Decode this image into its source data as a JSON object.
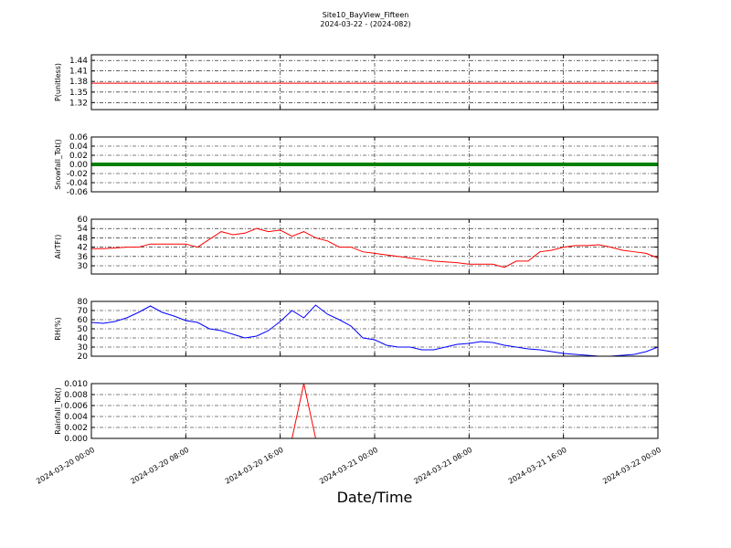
{
  "title": "Site10_BayView_Fifteen",
  "subtitle": "2024-03-22 - (2024-082)",
  "xlabel": "Date/Time",
  "chart_data": [
    {
      "type": "line",
      "ylabel": "P(unitless)",
      "color": "#ff0000",
      "linewidth": 1,
      "grid": true,
      "ylim": [
        1.3,
        1.456
      ],
      "yticks": [
        1.32,
        1.35,
        1.38,
        1.41,
        1.44
      ],
      "xlim": [
        "2024-03-20 00:00",
        "2024-03-22 00:00"
      ],
      "xticks": [
        "2024-03-20 00:00",
        "2024-03-20 08:00",
        "2024-03-20 16:00",
        "2024-03-21 00:00",
        "2024-03-21 08:00",
        "2024-03-21 16:00",
        "2024-03-22 00:00"
      ],
      "x": [
        "2024-03-20 00:00",
        "2024-03-20 01:00",
        "2024-03-20 02:00",
        "2024-03-20 03:00",
        "2024-03-20 04:00",
        "2024-03-20 05:00",
        "2024-03-20 06:00",
        "2024-03-20 07:00",
        "2024-03-20 08:00",
        "2024-03-20 09:00",
        "2024-03-20 10:00",
        "2024-03-20 11:00",
        "2024-03-20 12:00",
        "2024-03-20 13:00",
        "2024-03-20 14:00",
        "2024-03-20 15:00",
        "2024-03-20 16:00",
        "2024-03-20 17:00",
        "2024-03-20 18:00",
        "2024-03-20 19:00",
        "2024-03-20 20:00",
        "2024-03-20 21:00",
        "2024-03-20 22:00",
        "2024-03-20 23:00",
        "2024-03-21 00:00",
        "2024-03-21 01:00",
        "2024-03-21 02:00",
        "2024-03-21 03:00",
        "2024-03-21 04:00",
        "2024-03-21 05:00",
        "2024-03-21 06:00",
        "2024-03-21 07:00",
        "2024-03-21 08:00",
        "2024-03-21 09:00",
        "2024-03-21 10:00",
        "2024-03-21 11:00",
        "2024-03-21 12:00",
        "2024-03-21 13:00",
        "2024-03-21 14:00",
        "2024-03-21 15:00",
        "2024-03-21 16:00",
        "2024-03-21 17:00",
        "2024-03-21 18:00",
        "2024-03-21 19:00",
        "2024-03-21 20:00",
        "2024-03-21 21:00",
        "2024-03-21 22:00",
        "2024-03-21 23:00",
        "2024-03-22 00:00"
      ],
      "values": [
        1.375,
        1.375,
        1.375,
        1.375,
        1.375,
        1.375,
        1.375,
        1.375,
        1.375,
        1.375,
        1.375,
        1.375,
        1.375,
        1.375,
        1.375,
        1.375,
        1.375,
        1.375,
        1.375,
        1.375,
        1.375,
        1.375,
        1.375,
        1.375,
        1.375,
        1.375,
        1.375,
        1.375,
        1.375,
        1.375,
        1.375,
        1.375,
        1.375,
        1.375,
        1.375,
        1.375,
        1.375,
        1.375,
        1.375,
        1.375,
        1.375,
        1.375,
        1.375,
        1.375,
        1.375,
        1.375,
        1.375,
        1.375,
        1.375
      ]
    },
    {
      "type": "line",
      "ylabel": "Snowfall_Tot()",
      "color": "#008000",
      "linewidth": 4,
      "grid": true,
      "ylim": [
        -0.06,
        0.06
      ],
      "yticks": [
        {
          "value": -0.06,
          "label": "-0.06"
        },
        {
          "value": -0.04,
          "label": "-0.04"
        },
        {
          "value": -0.02,
          "label": "-0.02"
        },
        {
          "value": 0,
          "label": "0.00"
        },
        {
          "value": 0.02,
          "label": "0.02"
        },
        {
          "value": 0.04,
          "label": "0.04"
        },
        {
          "value": 0.06,
          "label": "0.06"
        }
      ],
      "xlim": [
        "2024-03-20 00:00",
        "2024-03-22 00:00"
      ],
      "xticks": [
        "2024-03-20 00:00",
        "2024-03-20 08:00",
        "2024-03-20 16:00",
        "2024-03-21 00:00",
        "2024-03-21 08:00",
        "2024-03-21 16:00",
        "2024-03-22 00:00"
      ],
      "x": [
        "2024-03-20 00:00",
        "2024-03-20 01:00",
        "2024-03-20 02:00",
        "2024-03-20 03:00",
        "2024-03-20 04:00",
        "2024-03-20 05:00",
        "2024-03-20 06:00",
        "2024-03-20 07:00",
        "2024-03-20 08:00",
        "2024-03-20 09:00",
        "2024-03-20 10:00",
        "2024-03-20 11:00",
        "2024-03-20 12:00",
        "2024-03-20 13:00",
        "2024-03-20 14:00",
        "2024-03-20 15:00",
        "2024-03-20 16:00",
        "2024-03-20 17:00",
        "2024-03-20 18:00",
        "2024-03-20 19:00",
        "2024-03-20 20:00",
        "2024-03-20 21:00",
        "2024-03-20 22:00",
        "2024-03-20 23:00",
        "2024-03-21 00:00",
        "2024-03-21 01:00",
        "2024-03-21 02:00",
        "2024-03-21 03:00",
        "2024-03-21 04:00",
        "2024-03-21 05:00",
        "2024-03-21 06:00",
        "2024-03-21 07:00",
        "2024-03-21 08:00",
        "2024-03-21 09:00",
        "2024-03-21 10:00",
        "2024-03-21 11:00",
        "2024-03-21 12:00",
        "2024-03-21 13:00",
        "2024-03-21 14:00",
        "2024-03-21 15:00",
        "2024-03-21 16:00",
        "2024-03-21 17:00",
        "2024-03-21 18:00",
        "2024-03-21 19:00",
        "2024-03-21 20:00",
        "2024-03-21 21:00",
        "2024-03-21 22:00",
        "2024-03-21 23:00",
        "2024-03-22 00:00"
      ],
      "values": [
        0,
        0,
        0,
        0,
        0,
        0,
        0,
        0,
        0,
        0,
        0,
        0,
        0,
        0,
        0,
        0,
        0,
        0,
        0,
        0,
        0,
        0,
        0,
        0,
        0,
        0,
        0,
        0,
        0,
        0,
        0,
        0,
        0,
        0,
        0,
        0,
        0,
        0,
        0,
        0,
        0,
        0,
        0,
        0,
        0,
        0,
        0,
        0,
        0
      ]
    },
    {
      "type": "line",
      "ylabel": "AirTF()",
      "color": "#ff0000",
      "linewidth": 1,
      "grid": true,
      "ylim": [
        24.7,
        60
      ],
      "yticks": [
        30,
        36,
        42,
        48,
        54,
        60
      ],
      "xlim": [
        "2024-03-20 00:00",
        "2024-03-22 00:00"
      ],
      "xticks": [
        "2024-03-20 00:00",
        "2024-03-20 08:00",
        "2024-03-20 16:00",
        "2024-03-21 00:00",
        "2024-03-21 08:00",
        "2024-03-21 16:00",
        "2024-03-22 00:00"
      ],
      "x": [
        "2024-03-20 00:00",
        "2024-03-20 01:00",
        "2024-03-20 02:00",
        "2024-03-20 03:00",
        "2024-03-20 04:00",
        "2024-03-20 05:00",
        "2024-03-20 06:00",
        "2024-03-20 07:00",
        "2024-03-20 08:00",
        "2024-03-20 09:00",
        "2024-03-20 10:00",
        "2024-03-20 11:00",
        "2024-03-20 12:00",
        "2024-03-20 13:00",
        "2024-03-20 14:00",
        "2024-03-20 15:00",
        "2024-03-20 16:00",
        "2024-03-20 17:00",
        "2024-03-20 18:00",
        "2024-03-20 19:00",
        "2024-03-20 20:00",
        "2024-03-20 21:00",
        "2024-03-20 22:00",
        "2024-03-20 23:00",
        "2024-03-21 00:00",
        "2024-03-21 01:00",
        "2024-03-21 02:00",
        "2024-03-21 03:00",
        "2024-03-21 04:00",
        "2024-03-21 05:00",
        "2024-03-21 06:00",
        "2024-03-21 07:00",
        "2024-03-21 08:00",
        "2024-03-21 09:00",
        "2024-03-21 10:00",
        "2024-03-21 11:00",
        "2024-03-21 12:00",
        "2024-03-21 13:00",
        "2024-03-21 14:00",
        "2024-03-21 15:00",
        "2024-03-21 16:00",
        "2024-03-21 17:00",
        "2024-03-21 18:00",
        "2024-03-21 19:00",
        "2024-03-21 20:00",
        "2024-03-21 21:00",
        "2024-03-21 22:00",
        "2024-03-21 23:00",
        "2024-03-22 00:00"
      ],
      "values": [
        41,
        41,
        41.5,
        42,
        42,
        44,
        44,
        44,
        44,
        42,
        47,
        52,
        50,
        51,
        54,
        52,
        53,
        49,
        52,
        48,
        46,
        42,
        42,
        39,
        38,
        37,
        36,
        35,
        34,
        33,
        32.5,
        32,
        31,
        31,
        31,
        29,
        33,
        33,
        39,
        40,
        42,
        43,
        43,
        43.5,
        42,
        40,
        39,
        38,
        35
      ]
    },
    {
      "type": "line",
      "ylabel": "RH(%)",
      "color": "#0000ff",
      "linewidth": 1,
      "grid": true,
      "ylim": [
        20,
        80
      ],
      "yticks": [
        20,
        30,
        40,
        50,
        60,
        70,
        80
      ],
      "xlim": [
        "2024-03-20 00:00",
        "2024-03-22 00:00"
      ],
      "xticks": [
        "2024-03-20 00:00",
        "2024-03-20 08:00",
        "2024-03-20 16:00",
        "2024-03-21 00:00",
        "2024-03-21 08:00",
        "2024-03-21 16:00",
        "2024-03-22 00:00"
      ],
      "x": [
        "2024-03-20 00:00",
        "2024-03-20 01:00",
        "2024-03-20 02:00",
        "2024-03-20 03:00",
        "2024-03-20 04:00",
        "2024-03-20 05:00",
        "2024-03-20 06:00",
        "2024-03-20 07:00",
        "2024-03-20 08:00",
        "2024-03-20 09:00",
        "2024-03-20 10:00",
        "2024-03-20 11:00",
        "2024-03-20 12:00",
        "2024-03-20 13:00",
        "2024-03-20 14:00",
        "2024-03-20 15:00",
        "2024-03-20 16:00",
        "2024-03-20 17:00",
        "2024-03-20 18:00",
        "2024-03-20 19:00",
        "2024-03-20 20:00",
        "2024-03-20 21:00",
        "2024-03-20 22:00",
        "2024-03-20 23:00",
        "2024-03-21 00:00",
        "2024-03-21 01:00",
        "2024-03-21 02:00",
        "2024-03-21 03:00",
        "2024-03-21 04:00",
        "2024-03-21 05:00",
        "2024-03-21 06:00",
        "2024-03-21 07:00",
        "2024-03-21 08:00",
        "2024-03-21 09:00",
        "2024-03-21 10:00",
        "2024-03-21 11:00",
        "2024-03-21 12:00",
        "2024-03-21 13:00",
        "2024-03-21 14:00",
        "2024-03-21 15:00",
        "2024-03-21 16:00",
        "2024-03-21 17:00",
        "2024-03-21 18:00",
        "2024-03-21 19:00",
        "2024-03-21 20:00",
        "2024-03-21 21:00",
        "2024-03-21 22:00",
        "2024-03-21 23:00",
        "2024-03-22 00:00"
      ],
      "values": [
        57,
        56,
        58,
        62,
        68,
        75,
        68,
        64,
        59,
        57,
        50,
        48,
        44,
        40,
        42,
        48,
        58,
        70,
        62,
        76,
        66,
        60,
        53,
        40,
        38,
        32,
        30,
        30,
        27,
        27,
        30,
        33,
        34,
        36,
        35,
        32,
        30,
        28,
        27,
        25,
        23,
        22,
        21,
        20,
        20,
        21,
        22,
        25,
        30
      ]
    },
    {
      "type": "line",
      "ylabel": "Rainfall_Tot()",
      "color": "#ff0000",
      "linewidth": 1,
      "grid": true,
      "ylim": [
        0,
        0.01
      ],
      "yticks": [
        {
          "value": 0,
          "label": "0.000"
        },
        {
          "value": 0.002,
          "label": "0.002"
        },
        {
          "value": 0.004,
          "label": "0.004"
        },
        {
          "value": 0.006,
          "label": "0.006"
        },
        {
          "value": 0.008,
          "label": "0.008"
        },
        {
          "value": 0.01,
          "label": "0.010"
        }
      ],
      "xlim": [
        "2024-03-20 00:00",
        "2024-03-22 00:00"
      ],
      "xticks": [
        "2024-03-20 00:00",
        "2024-03-20 08:00",
        "2024-03-20 16:00",
        "2024-03-21 00:00",
        "2024-03-21 08:00",
        "2024-03-21 16:00",
        "2024-03-22 00:00"
      ],
      "x": [
        "2024-03-20 00:00",
        "2024-03-20 01:00",
        "2024-03-20 02:00",
        "2024-03-20 03:00",
        "2024-03-20 04:00",
        "2024-03-20 05:00",
        "2024-03-20 06:00",
        "2024-03-20 07:00",
        "2024-03-20 08:00",
        "2024-03-20 09:00",
        "2024-03-20 10:00",
        "2024-03-20 11:00",
        "2024-03-20 12:00",
        "2024-03-20 13:00",
        "2024-03-20 14:00",
        "2024-03-20 15:00",
        "2024-03-20 16:00",
        "2024-03-20 17:00",
        "2024-03-20 18:00",
        "2024-03-20 19:00",
        "2024-03-20 20:00",
        "2024-03-20 21:00",
        "2024-03-20 22:00",
        "2024-03-20 23:00",
        "2024-03-21 00:00",
        "2024-03-21 01:00",
        "2024-03-21 02:00",
        "2024-03-21 03:00",
        "2024-03-21 04:00",
        "2024-03-21 05:00",
        "2024-03-21 06:00",
        "2024-03-21 07:00",
        "2024-03-21 08:00",
        "2024-03-21 09:00",
        "2024-03-21 10:00",
        "2024-03-21 11:00",
        "2024-03-21 12:00",
        "2024-03-21 13:00",
        "2024-03-21 14:00",
        "2024-03-21 15:00",
        "2024-03-21 16:00",
        "2024-03-21 17:00",
        "2024-03-21 18:00",
        "2024-03-21 19:00",
        "2024-03-21 20:00",
        "2024-03-21 21:00",
        "2024-03-21 22:00",
        "2024-03-21 23:00",
        "2024-03-22 00:00"
      ],
      "values": [
        0,
        0,
        0,
        0,
        0,
        0,
        0,
        0,
        0,
        0,
        0,
        0,
        0,
        0,
        0,
        0,
        0,
        0,
        0.01,
        0,
        0,
        0,
        0,
        0,
        0,
        0,
        0,
        0,
        0,
        0,
        0,
        0,
        0,
        0,
        0,
        0,
        0,
        0,
        0,
        0,
        0,
        0,
        0,
        0,
        0,
        0,
        0,
        0,
        0
      ]
    }
  ]
}
